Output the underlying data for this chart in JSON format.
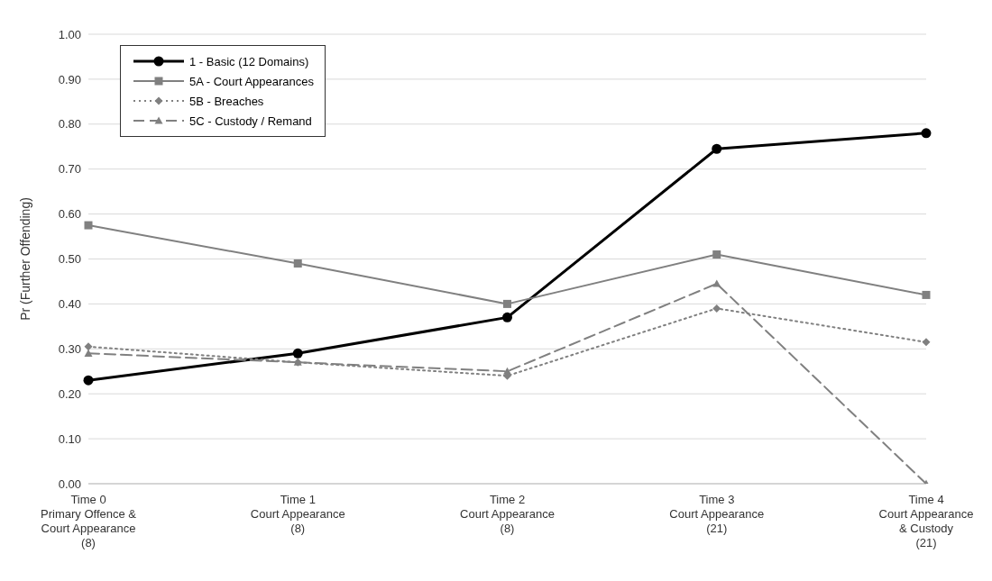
{
  "chart_data": {
    "type": "line",
    "ylabel": "Pr (Further Offending)",
    "categories": [
      "Time 0\nPrimary Offence &\nCourt Appearance\n(8)",
      "Time 1\nCourt Appearance\n(8)",
      "Time 2\nCourt Appearance\n(8)",
      "Time 3\nCourt Appearance\n(21)",
      "Time 4\nCourt Appearance\n& Custody\n(21)"
    ],
    "series": [
      {
        "name": "1 - Basic (12 Domains)",
        "color": "#000000",
        "marker": "circle",
        "line_style": "solid",
        "values": [
          0.23,
          0.29,
          0.37,
          0.745,
          0.78
        ]
      },
      {
        "name": "5A - Court Appearances",
        "color": "#808080",
        "marker": "square",
        "line_style": "solid",
        "values": [
          0.575,
          0.49,
          0.4,
          0.51,
          0.42
        ]
      },
      {
        "name": "5B - Breaches",
        "color": "#808080",
        "marker": "diamond",
        "line_style": "dotted",
        "values": [
          0.305,
          0.27,
          0.24,
          0.39,
          0.315
        ]
      },
      {
        "name": "5C - Custody / Remand",
        "color": "#808080",
        "marker": "triangle",
        "line_style": "dashed",
        "values": [
          0.29,
          0.27,
          0.25,
          0.445,
          0.0
        ]
      }
    ],
    "ylim": [
      0,
      1
    ],
    "yticks": [
      {
        "value": 0,
        "label": "0.00"
      },
      {
        "value": 0.1,
        "label": "0.10"
      },
      {
        "value": 0.2,
        "label": "0.20"
      },
      {
        "value": 0.3,
        "label": "0.30"
      },
      {
        "value": 0.4,
        "label": "0.40"
      },
      {
        "value": 0.5,
        "label": "0.50"
      },
      {
        "value": 0.6,
        "label": "0.60"
      },
      {
        "value": 0.7,
        "label": "0.70"
      },
      {
        "value": 0.8,
        "label": "0.80"
      },
      {
        "value": 0.9,
        "label": "0.90"
      },
      {
        "value": 1,
        "label": "1.00"
      }
    ],
    "grid": "y",
    "legend": "top left"
  }
}
